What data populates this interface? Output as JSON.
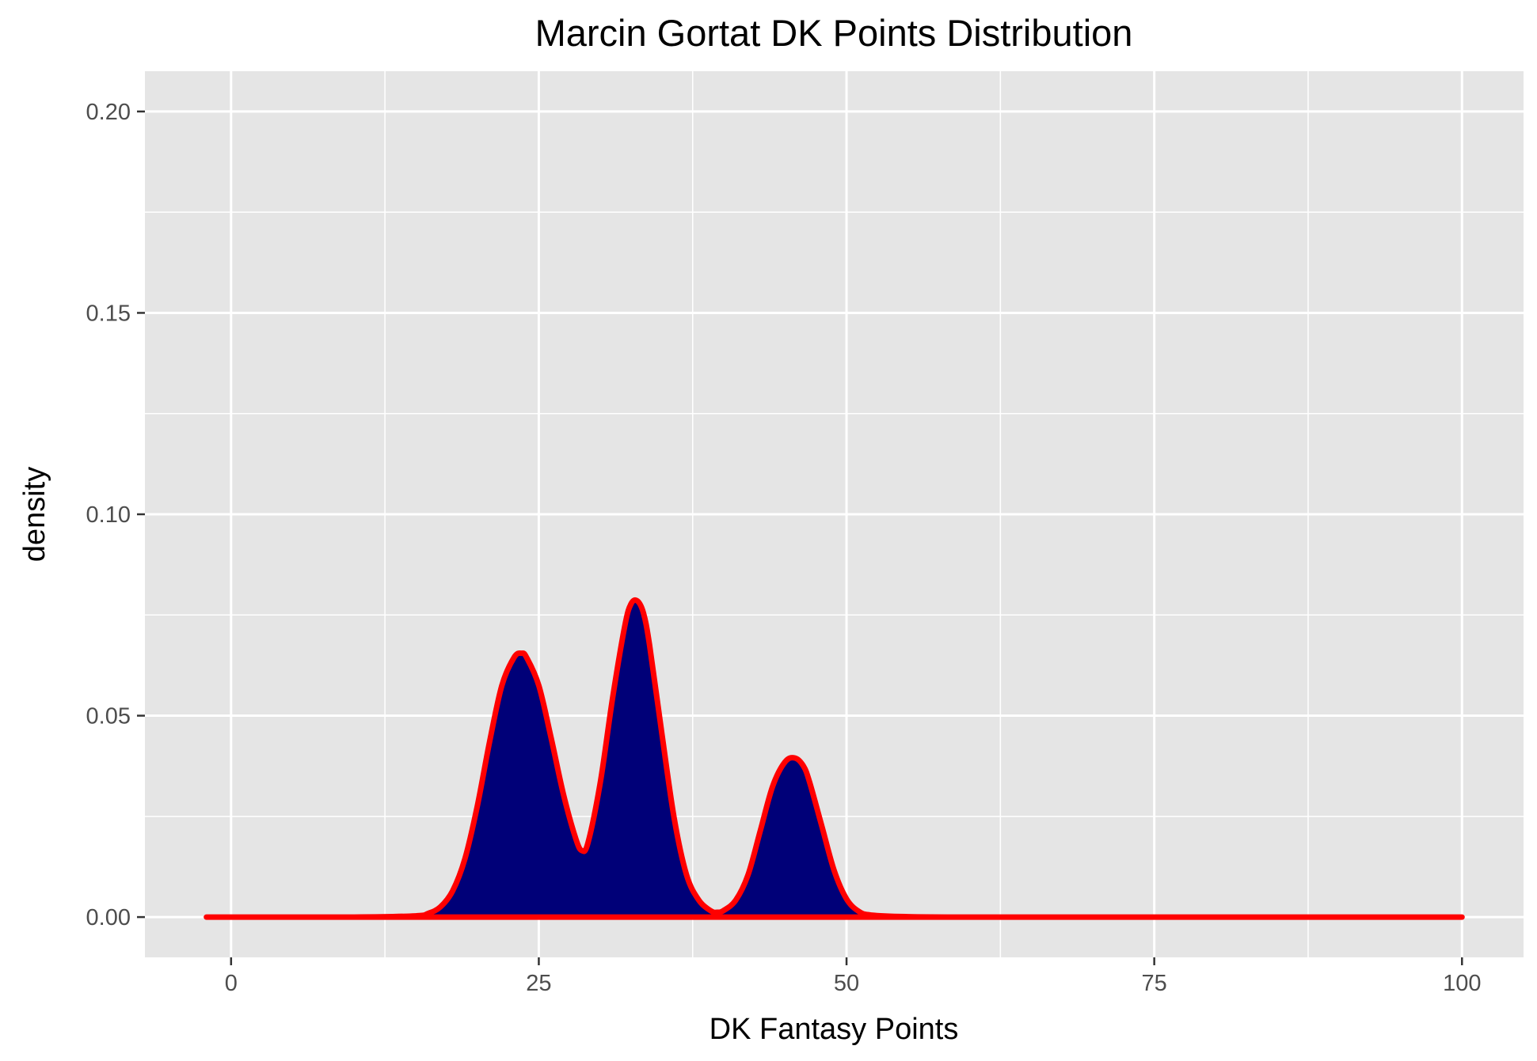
{
  "chart_data": {
    "type": "area",
    "title": "Marcin Gortat DK Points Distribution",
    "xlabel": "DK Fantasy Points",
    "ylabel": "density",
    "xlim": [
      -7,
      105
    ],
    "ylim": [
      -0.01,
      0.21
    ],
    "x_ticks": [
      0,
      25,
      50,
      75,
      100
    ],
    "x_tick_labels": [
      "0",
      "25",
      "50",
      "75",
      "100"
    ],
    "x_minor_ticks": [
      12.5,
      37.5,
      62.5,
      87.5
    ],
    "y_ticks": [
      0,
      0.05,
      0.1,
      0.15,
      0.2
    ],
    "y_tick_labels": [
      "0.00",
      "0.05",
      "0.10",
      "0.15",
      "0.20"
    ],
    "y_minor_ticks": [
      0.025,
      0.075,
      0.125,
      0.175
    ],
    "grid": true,
    "legend": "none",
    "fill_color": "#000078",
    "line_color": "#ff0000",
    "panel_color": "#e5e5e5",
    "grid_color": "#ffffff",
    "series": [
      {
        "x": [
          -2,
          10,
          15,
          16,
          17,
          18,
          19,
          20,
          21,
          22,
          23,
          23.6,
          24,
          25,
          26,
          27,
          28,
          28.5,
          29,
          30,
          31,
          32,
          32.5,
          33,
          33.5,
          34,
          35,
          36,
          37,
          38,
          39,
          39.5,
          40,
          41,
          42,
          43,
          44,
          45,
          45.8,
          46.5,
          47,
          48,
          49,
          50,
          51,
          52,
          55,
          60,
          75,
          100
        ],
        "y": [
          0,
          0,
          0.0003,
          0.0009,
          0.0025,
          0.0065,
          0.0145,
          0.0275,
          0.0435,
          0.0575,
          0.0645,
          0.0655,
          0.0645,
          0.0575,
          0.0445,
          0.0305,
          0.0195,
          0.0165,
          0.0185,
          0.0335,
          0.0545,
          0.0725,
          0.0778,
          0.0785,
          0.0755,
          0.0675,
          0.0455,
          0.0245,
          0.0105,
          0.0042,
          0.0015,
          0.0012,
          0.0016,
          0.0042,
          0.0105,
          0.0215,
          0.0325,
          0.0385,
          0.0395,
          0.0375,
          0.0335,
          0.0225,
          0.0115,
          0.0045,
          0.0014,
          0.0005,
          0.0001,
          0,
          0,
          0
        ]
      }
    ]
  }
}
